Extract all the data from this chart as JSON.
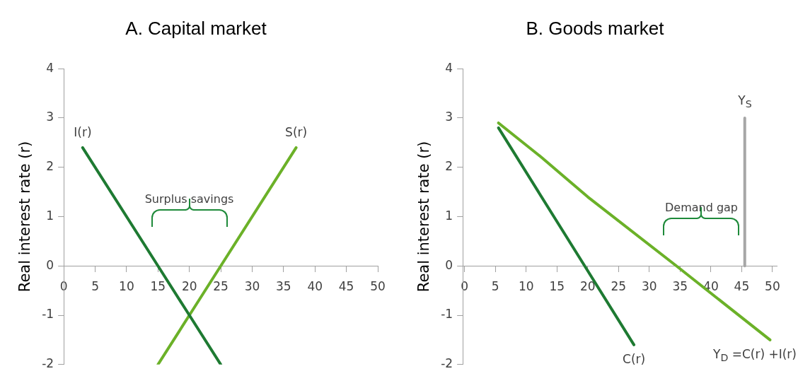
{
  "chart_data": [
    {
      "type": "line",
      "title": "A. Capital market",
      "ylabel": "Real interest rate (r)",
      "xlim": [
        0,
        50
      ],
      "ylim": [
        -2,
        4
      ],
      "xticks": [
        0,
        5,
        10,
        15,
        20,
        25,
        30,
        35,
        40,
        45,
        50
      ],
      "yticks": [
        -2,
        -1,
        0,
        1,
        2,
        3,
        4
      ],
      "grid": false,
      "legend": false,
      "marker": "none",
      "series": [
        {
          "name": "I(r)",
          "color": "#1e7a32",
          "x": [
            3,
            15,
            20,
            25
          ],
          "values": [
            2.4,
            0,
            -1,
            -2
          ]
        },
        {
          "name": "S(r)",
          "color": "#6bb128",
          "x": [
            15,
            20,
            25,
            37
          ],
          "values": [
            -2,
            -1,
            0,
            2.4
          ]
        }
      ],
      "annotations": [
        "Surplus savings"
      ]
    },
    {
      "type": "line",
      "title": "B. Goods market",
      "ylabel": "Real interest rate (r)",
      "xlim": [
        -0.3,
        50.7
      ],
      "ylim": [
        -2,
        4
      ],
      "xticks": [
        0,
        5,
        10,
        15,
        20,
        25,
        30,
        35,
        40,
        45,
        50
      ],
      "yticks": [
        -2,
        -1,
        0,
        1,
        2,
        3,
        4
      ],
      "grid": false,
      "legend": false,
      "marker": "none",
      "series": [
        {
          "name": "C(r)",
          "color": "#1e7a32",
          "x": [
            5.5,
            19.5,
            27.5
          ],
          "values": [
            2.8,
            0,
            -1.6
          ]
        },
        {
          "name": "Y$_{D}$ =C(r) +I(r)",
          "color": "#6bb128",
          "x": [
            5.5,
            12.5,
            20,
            34.4,
            49.6
          ],
          "values": [
            2.9,
            2.2,
            1.4,
            0,
            -1.5
          ]
        },
        {
          "name": "Y$_{S}$",
          "color": "#a6a6a6",
          "x": [
            45.5,
            45.5
          ],
          "values": [
            0,
            3
          ]
        }
      ],
      "annotations": [
        "Demand gap"
      ]
    }
  ]
}
